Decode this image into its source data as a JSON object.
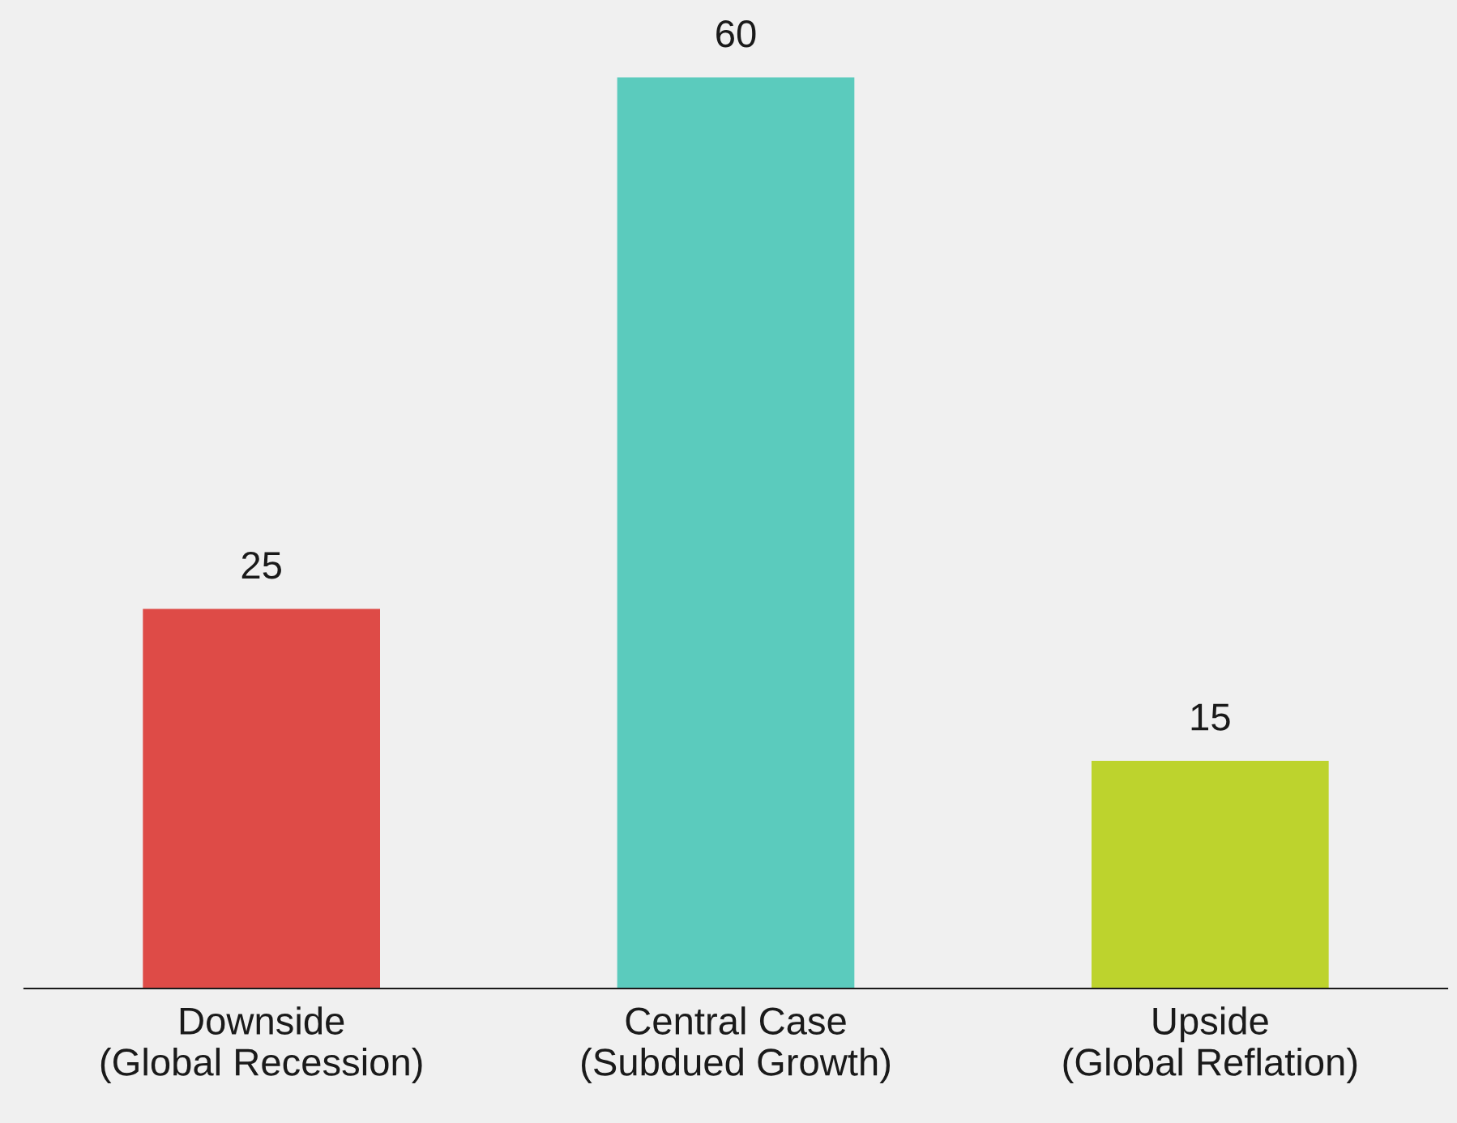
{
  "chart_data": {
    "type": "bar",
    "categories": [
      "Downside\n(Global Recession)",
      "Central Case\n(Subdued Growth)",
      "Upside\n(Global Reflation)"
    ],
    "values": [
      25,
      60,
      15
    ],
    "colors": [
      "#de4b47",
      "#5bcbbd",
      "#bdd32d"
    ],
    "data_labels": true,
    "grid": false,
    "legend": false
  }
}
